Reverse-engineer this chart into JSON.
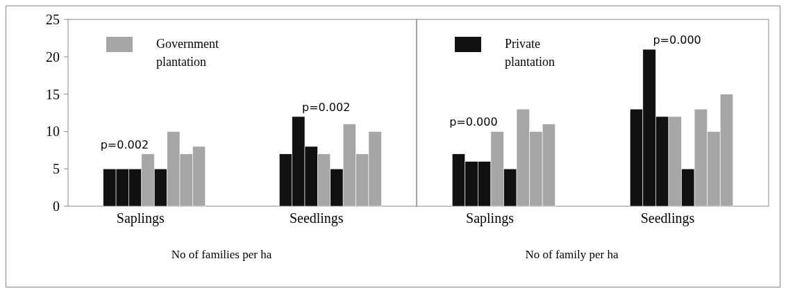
{
  "chart_data": [
    {
      "type": "bar",
      "xlabel": "No of families per ha",
      "categories": [
        "Saplings",
        "Seedlings"
      ],
      "ylim": [
        0,
        25
      ],
      "yticks": [
        0,
        5,
        10,
        15,
        20,
        25
      ],
      "legend": "top left",
      "series": [
        {
          "color": "#111111",
          "values": [
            5,
            7
          ]
        },
        {
          "color": "#111111",
          "values": [
            5,
            12
          ]
        },
        {
          "color": "#111111",
          "values": [
            5,
            8
          ]
        },
        {
          "name": "Government plantation",
          "color": "#a6a6a6",
          "values": [
            7,
            7
          ]
        },
        {
          "color": "#111111",
          "values": [
            5,
            5
          ]
        },
        {
          "color": "#a6a6a6",
          "values": [
            10,
            11
          ]
        },
        {
          "color": "#a6a6a6",
          "values": [
            7,
            7
          ]
        },
        {
          "color": "#a6a6a6",
          "values": [
            8,
            10
          ]
        }
      ],
      "annotations": [
        "p=0.002",
        "p=0.002"
      ]
    },
    {
      "type": "bar",
      "xlabel": "No of family per ha",
      "categories": [
        "Saplings",
        "Seedlings"
      ],
      "ylim": [
        0,
        25
      ],
      "tick_labels": "x",
      "legend": "top left",
      "series": [
        {
          "name": "Private plantation",
          "color": "#111111",
          "values": [
            7,
            13
          ]
        },
        {
          "color": "#111111",
          "values": [
            6,
            21
          ]
        },
        {
          "color": "#111111",
          "values": [
            6,
            12
          ]
        },
        {
          "color": "#a6a6a6",
          "values": [
            10,
            12
          ]
        },
        {
          "color": "#111111",
          "values": [
            5,
            5
          ]
        },
        {
          "color": "#a6a6a6",
          "values": [
            13,
            13
          ]
        },
        {
          "color": "#a6a6a6",
          "values": [
            10,
            10
          ]
        },
        {
          "color": "#a6a6a6",
          "values": [
            11,
            15
          ]
        }
      ],
      "annotations": [
        "p=0.000",
        "p=0.000"
      ]
    }
  ]
}
